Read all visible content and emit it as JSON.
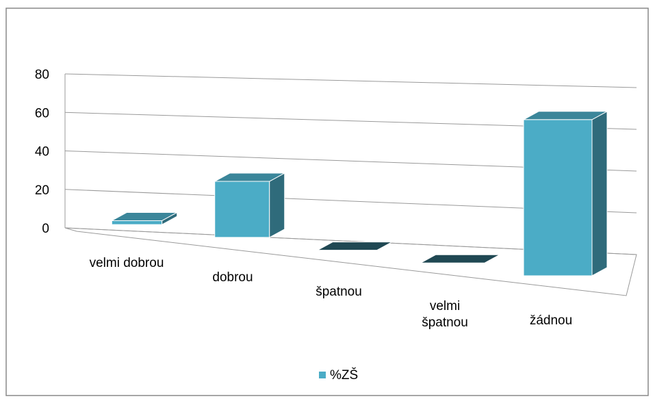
{
  "chart_data": {
    "type": "bar3d",
    "categories": [
      "velmi dobrou",
      "dobrou",
      "špatnou",
      "velmi špatnou",
      "žádnou"
    ],
    "series": [
      {
        "name": "%ZŠ",
        "color": "#4bacc6",
        "values": [
          2,
          28,
          0,
          0,
          72
        ]
      }
    ],
    "ylim": [
      0,
      80
    ],
    "yticks": [
      0,
      20,
      40,
      60,
      80
    ],
    "grid": true,
    "legend": "bottom"
  }
}
